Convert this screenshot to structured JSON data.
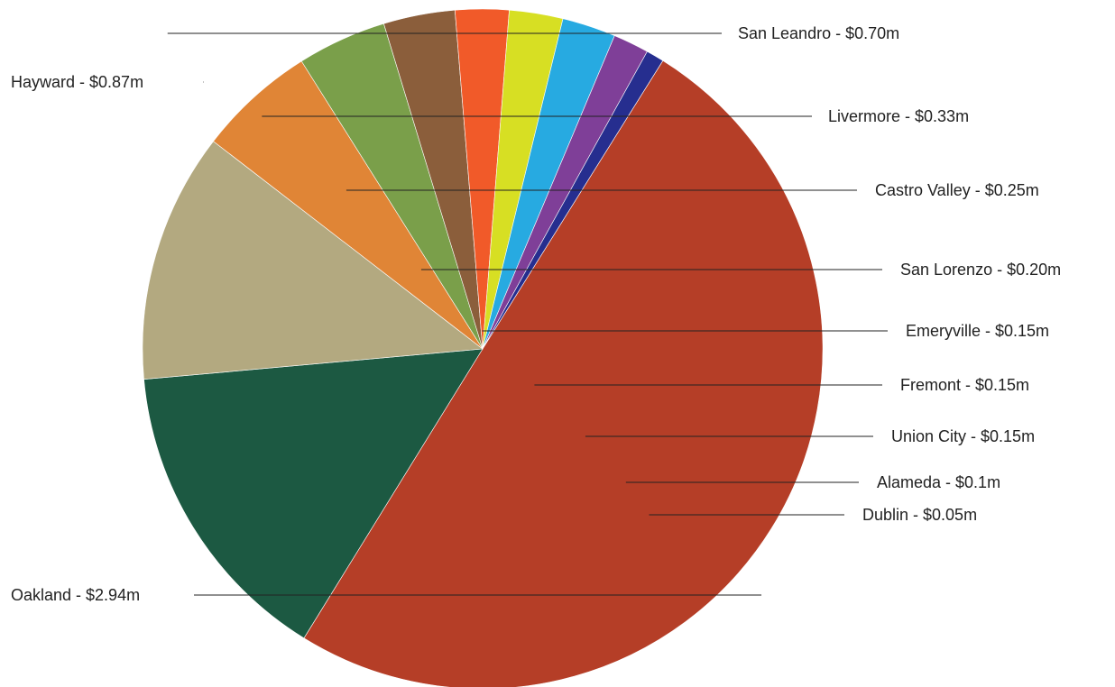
{
  "chart_data": {
    "type": "pie",
    "slices": [
      {
        "label": "Oakland - $2.94m",
        "value": 2.94,
        "color": "#b53e27"
      },
      {
        "label": "Hayward - $0.87m",
        "value": 0.87,
        "color": "#1c5942"
      },
      {
        "label": "San Leandro - $0.70m",
        "value": 0.7,
        "color": "#b3a980"
      },
      {
        "label": "Livermore - $0.33m",
        "value": 0.33,
        "color": "#e08536"
      },
      {
        "label": "Castro Valley - $0.25m",
        "value": 0.25,
        "color": "#7a9f4a"
      },
      {
        "label": "San Lorenzo - $0.20m",
        "value": 0.2,
        "color": "#8b5e3b"
      },
      {
        "label": "Emeryville - $0.15m",
        "value": 0.15,
        "color": "#f15a29"
      },
      {
        "label": "Fremont - $0.15m",
        "value": 0.15,
        "color": "#d7df23"
      },
      {
        "label": "Union City - $0.15m",
        "value": 0.15,
        "color": "#27aae1"
      },
      {
        "label": "Alameda - $0.1m",
        "value": 0.1,
        "color": "#7f3f98"
      },
      {
        "label": "Dublin - $0.05m",
        "value": 0.05,
        "color": "#262e8f"
      }
    ],
    "legend": "none"
  }
}
